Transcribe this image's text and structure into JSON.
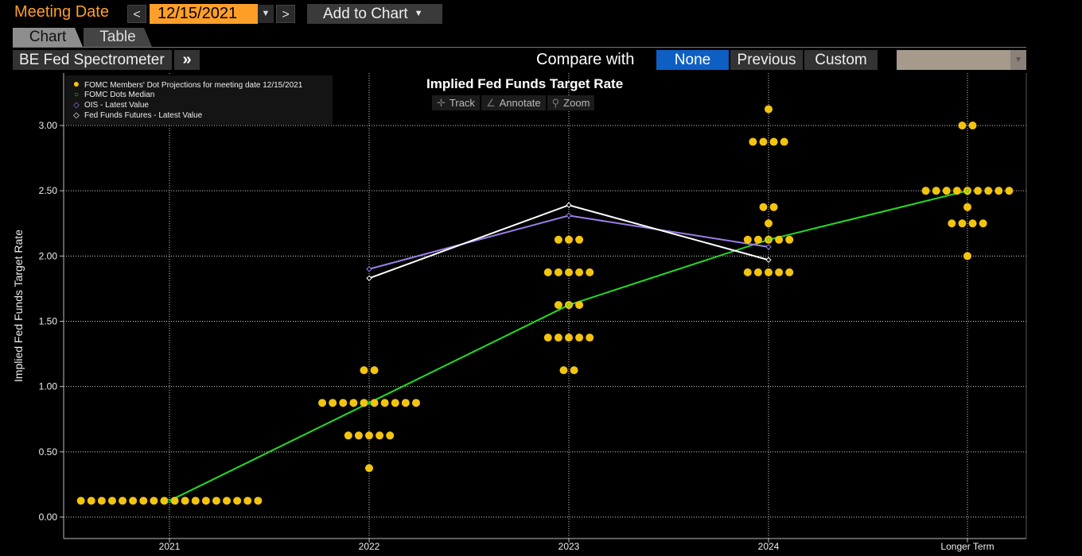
{
  "header": {
    "meeting_label": "Meeting Date",
    "prev_glyph": "<",
    "next_glyph": ">",
    "date_value": "12/15/2021",
    "add_to_chart_label": "Add to Chart"
  },
  "tabs": [
    {
      "label": "Chart",
      "active": true
    },
    {
      "label": "Table",
      "active": false
    }
  ],
  "toolbar": {
    "source_label": "BE Fed Spectrometer",
    "compare_label": "Compare with",
    "compare_options": [
      "None",
      "Previous",
      "Custom"
    ],
    "compare_selected": "None"
  },
  "colors": {
    "accent": "#ff9f2a",
    "selected": "#0d5fc4",
    "dots": "#f2c40f",
    "median": "#22dd22",
    "ois": "#9b7fe6",
    "futures": "#ffffff"
  },
  "chart_tools": [
    {
      "label": "Track",
      "icon": "crosshair-icon"
    },
    {
      "label": "Annotate",
      "icon": "pencil-icon"
    },
    {
      "label": "Zoom",
      "icon": "magnifier-icon"
    }
  ],
  "chart_data": {
    "type": "scatter",
    "title": "Implied Fed Funds Target Rate",
    "ylabel": "Implied Fed Funds Target Rate",
    "xlabel": "",
    "categories": [
      "2021",
      "2022",
      "2023",
      "2024",
      "Longer Term"
    ],
    "ylim": [
      -0.05,
      3.45
    ],
    "yticks": [
      "0.00",
      "0.50",
      "1.00",
      "1.50",
      "2.00",
      "2.50",
      "3.00"
    ],
    "grid": true,
    "legend_position": "top-left",
    "legend": [
      "FOMC Members' Dot Projections for meeting date 12/15/2021",
      "FOMC Dots Median",
      "OIS - Latest Value",
      "Fed Funds Futures - Latest Value"
    ],
    "dots": [
      {
        "category": "2021",
        "levels": [
          {
            "rate": 0.125,
            "count": 18
          }
        ]
      },
      {
        "category": "2022",
        "levels": [
          {
            "rate": 1.125,
            "count": 2
          },
          {
            "rate": 0.875,
            "count": 10
          },
          {
            "rate": 0.625,
            "count": 5
          },
          {
            "rate": 0.375,
            "count": 1
          }
        ]
      },
      {
        "category": "2023",
        "levels": [
          {
            "rate": 2.125,
            "count": 3
          },
          {
            "rate": 1.875,
            "count": 5
          },
          {
            "rate": 1.625,
            "count": 3
          },
          {
            "rate": 1.375,
            "count": 5
          },
          {
            "rate": 1.125,
            "count": 2
          }
        ]
      },
      {
        "category": "2024",
        "levels": [
          {
            "rate": 3.125,
            "count": 1
          },
          {
            "rate": 2.875,
            "count": 4
          },
          {
            "rate": 2.375,
            "count": 2
          },
          {
            "rate": 2.25,
            "count": 1
          },
          {
            "rate": 2.125,
            "count": 5
          },
          {
            "rate": 1.875,
            "count": 5
          }
        ]
      },
      {
        "category": "Longer Term",
        "levels": [
          {
            "rate": 3.0,
            "count": 2
          },
          {
            "rate": 2.5,
            "count": 9
          },
          {
            "rate": 2.375,
            "count": 1
          },
          {
            "rate": 2.25,
            "count": 4
          },
          {
            "rate": 2.0,
            "count": 1
          }
        ]
      }
    ],
    "series": [
      {
        "name": "FOMC Dots Median",
        "categories": [
          "2021",
          "2022",
          "2023",
          "2024",
          "Longer Term"
        ],
        "values": [
          0.125,
          0.875,
          1.625,
          2.125,
          2.5
        ]
      },
      {
        "name": "OIS - Latest Value",
        "categories": [
          "2022",
          "2023",
          "2024"
        ],
        "values": [
          1.9,
          2.31,
          2.07
        ]
      },
      {
        "name": "Fed Funds Futures - Latest Value",
        "categories": [
          "2022",
          "2023",
          "2024"
        ],
        "values": [
          1.83,
          2.39,
          1.97
        ]
      }
    ]
  }
}
